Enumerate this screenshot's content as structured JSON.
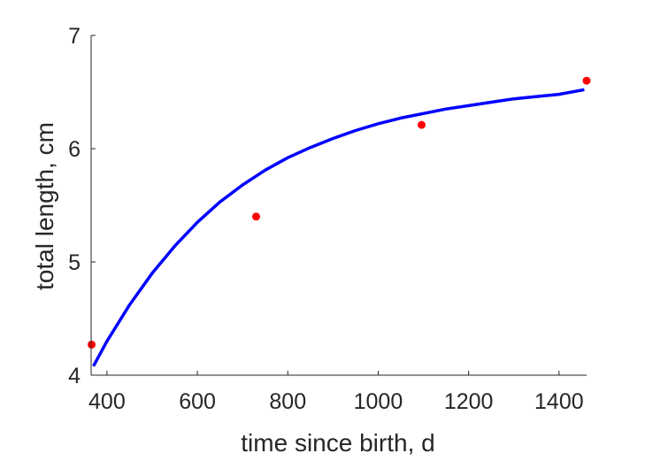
{
  "chart_data": {
    "type": "line",
    "title": "",
    "xlabel": "time since birth, d",
    "ylabel": "total length, cm",
    "xlim": [
      365,
      1461
    ],
    "ylim": [
      4,
      7
    ],
    "x_ticks": [
      400,
      600,
      800,
      1000,
      1200,
      1400
    ],
    "y_ticks": [
      4,
      5,
      6,
      7
    ],
    "grid": false,
    "series": [
      {
        "kind": "line",
        "color": "#0000ff",
        "x": [
          370,
          400,
          450,
          500,
          550,
          600,
          650,
          700,
          750,
          800,
          850,
          900,
          950,
          1000,
          1050,
          1100,
          1150,
          1200,
          1250,
          1300,
          1350,
          1400,
          1456
        ],
        "y": [
          4.08,
          4.3,
          4.62,
          4.9,
          5.14,
          5.35,
          5.53,
          5.68,
          5.81,
          5.92,
          6.01,
          6.09,
          6.16,
          6.22,
          6.27,
          6.31,
          6.35,
          6.38,
          6.41,
          6.44,
          6.46,
          6.48,
          6.52
        ]
      },
      {
        "kind": "scatter",
        "color": "#ff0000",
        "x": [
          366,
          730,
          1096,
          1461
        ],
        "y": [
          4.27,
          5.4,
          6.21,
          6.6
        ]
      }
    ]
  }
}
